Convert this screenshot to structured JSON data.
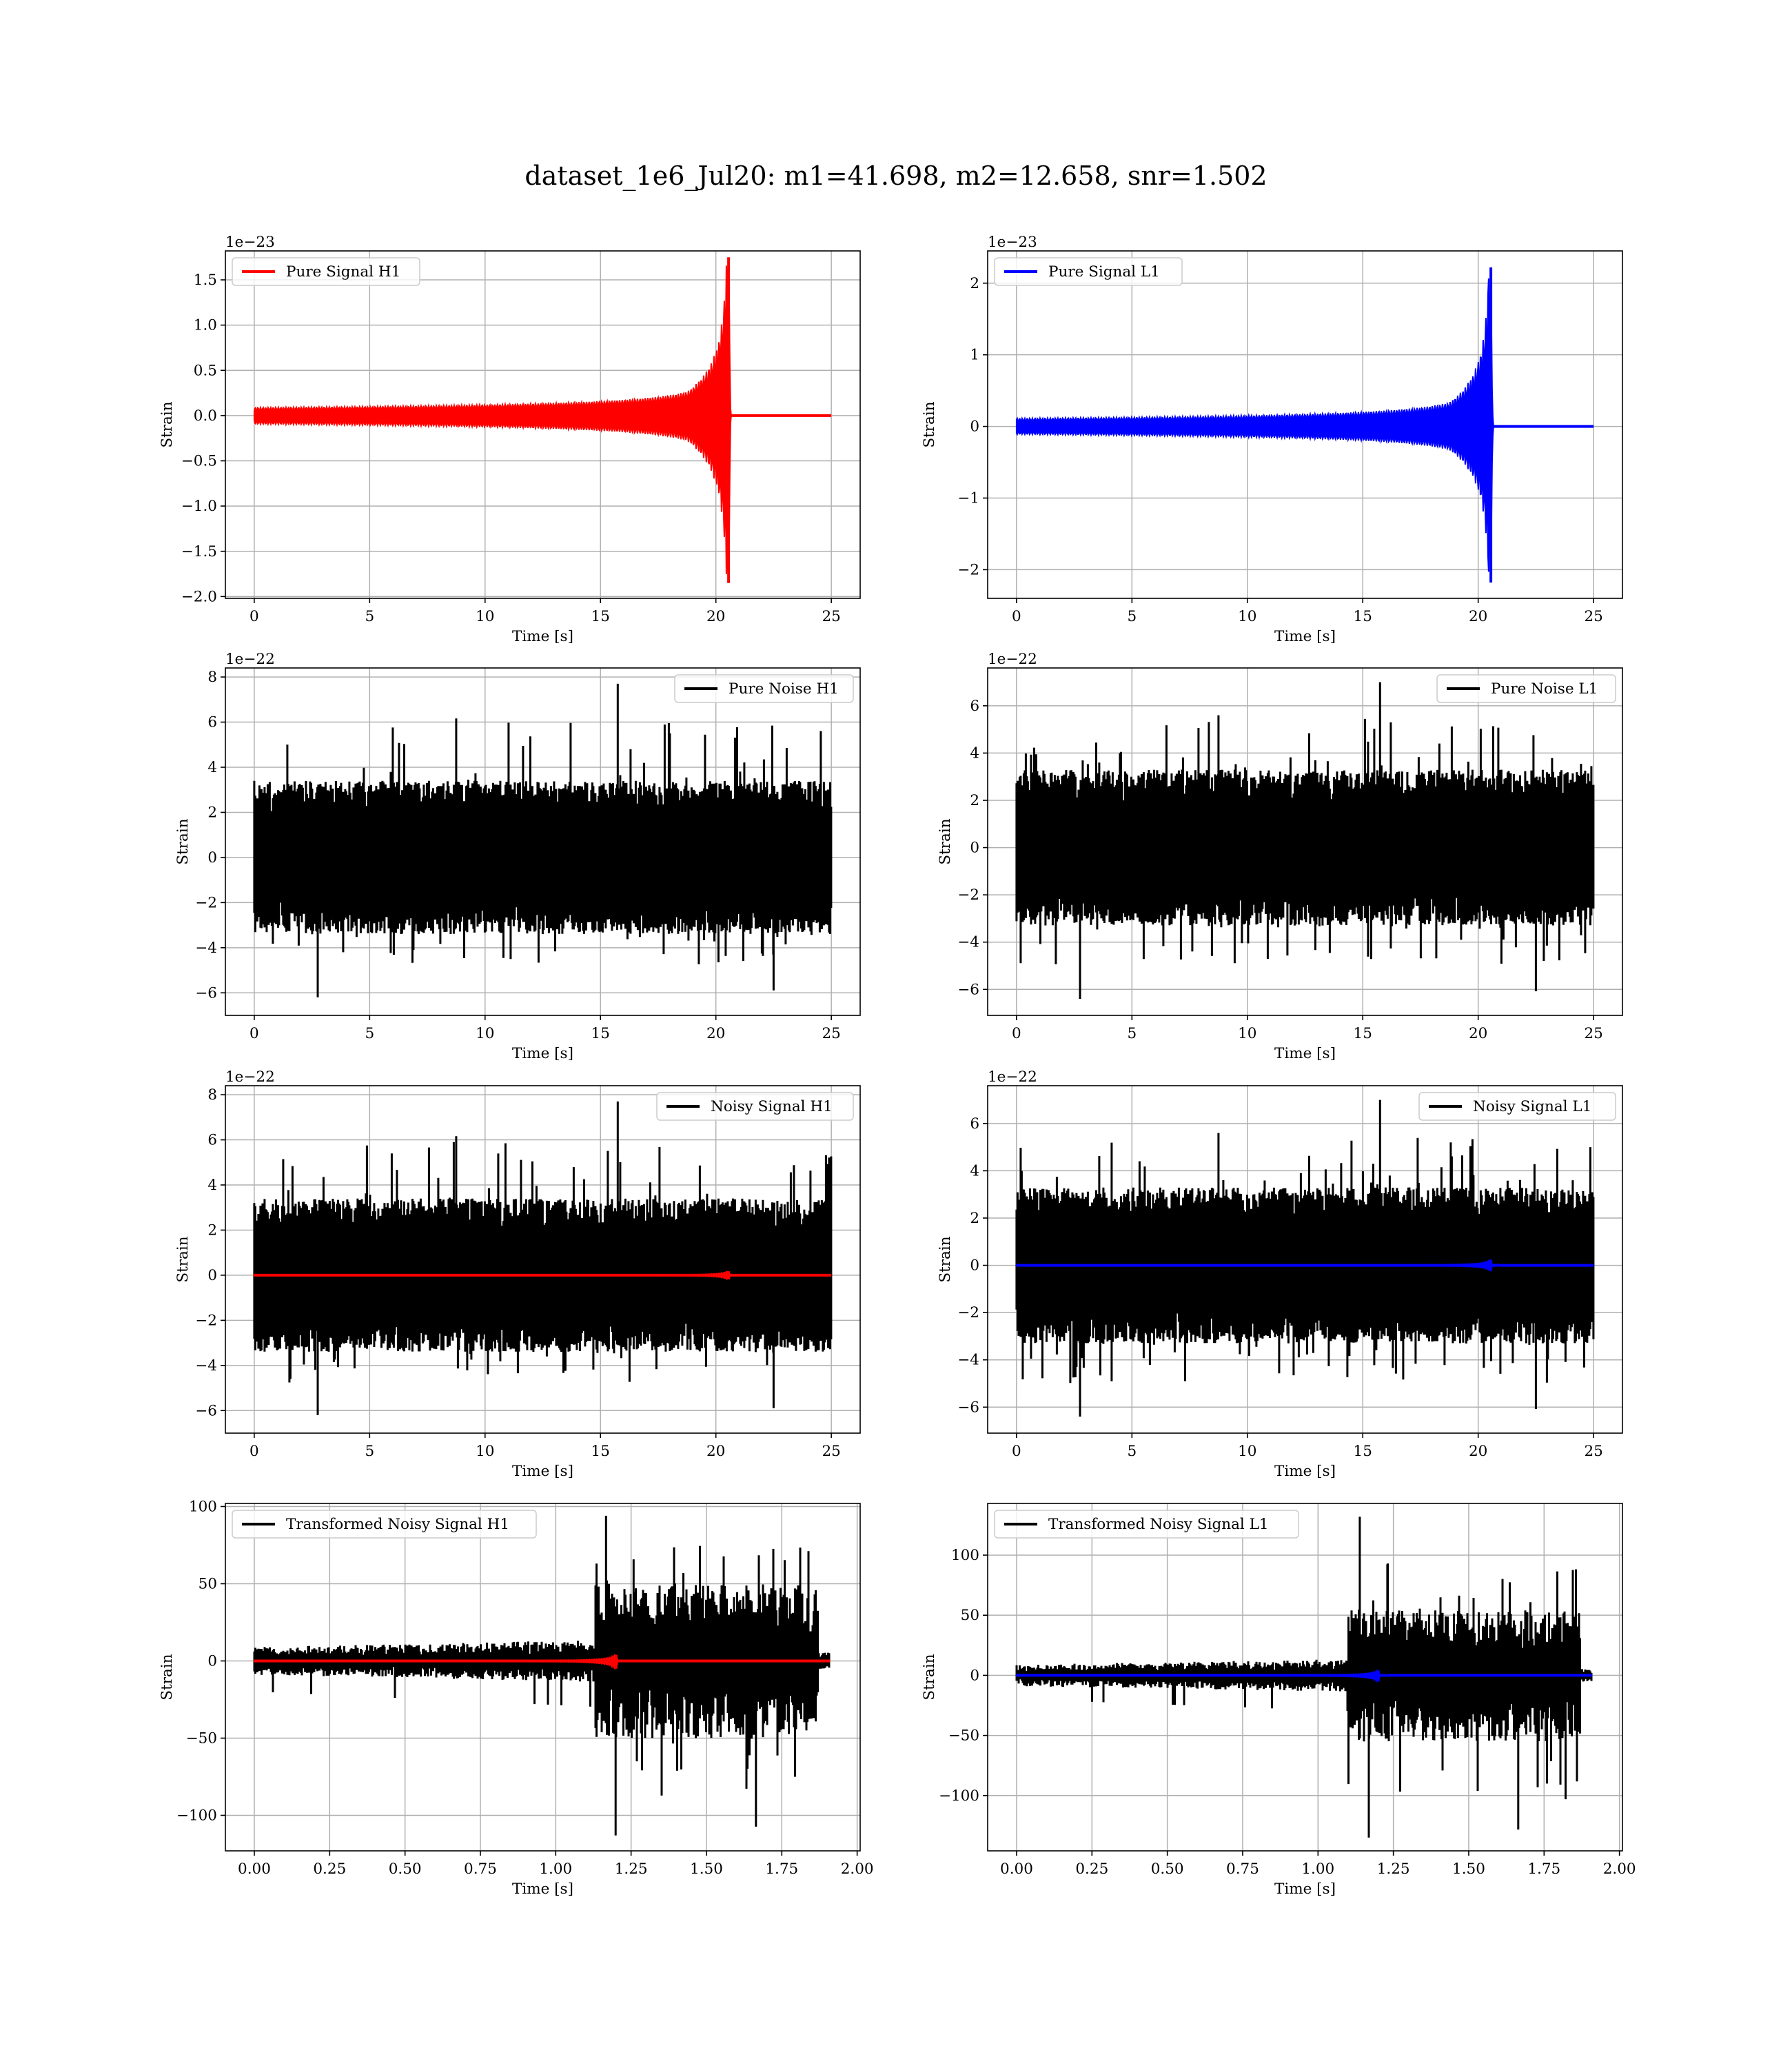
{
  "figure": {
    "title": "dataset_1e6_Jul20: m1=41.698, m2=12.658, snr=1.502"
  },
  "colors": {
    "red": "#ff0000",
    "blue": "#0000ff",
    "black": "#000000"
  },
  "chart_data": [
    {
      "id": "pure-signal-h1",
      "type": "line",
      "xlabel": "Time [s]",
      "ylabel": "Strain",
      "xlim": [
        -1.25,
        26.25
      ],
      "ylim": [
        -2.02,
        1.82
      ],
      "offset_text": "1e−23",
      "xticks": [
        0,
        5,
        10,
        15,
        20,
        25
      ],
      "xticklabels": [
        "0",
        "5",
        "10",
        "15",
        "20",
        "25"
      ],
      "yticks": [
        1.5,
        1.0,
        0.5,
        0.0,
        -0.5,
        -1.0,
        -1.5,
        -2.0
      ],
      "yticklabels": [
        "1.5",
        "1.0",
        "0.5",
        "0.0",
        "−0.5",
        "−1.0",
        "−1.5",
        "−2.0"
      ],
      "legend": {
        "loc": "upper-left"
      },
      "series": [
        {
          "name": "Pure Signal H1",
          "color": "#ff0000",
          "kind": "chirp",
          "x_start": 0,
          "x_end": 25,
          "merger": 20.55,
          "peak_pos": 1.75,
          "peak_neg": -1.85
        }
      ]
    },
    {
      "id": "pure-signal-l1",
      "type": "line",
      "xlabel": "Time [s]",
      "ylabel": "Strain",
      "xlim": [
        -1.25,
        26.25
      ],
      "ylim": [
        -2.4,
        2.45
      ],
      "offset_text": "1e−23",
      "xticks": [
        0,
        5,
        10,
        15,
        20,
        25
      ],
      "xticklabels": [
        "0",
        "5",
        "10",
        "15",
        "20",
        "25"
      ],
      "yticks": [
        2,
        1,
        0,
        -1,
        -2
      ],
      "yticklabels": [
        "2",
        "1",
        "0",
        "−1",
        "−2"
      ],
      "legend": {
        "loc": "upper-left"
      },
      "series": [
        {
          "name": "Pure Signal L1",
          "color": "#0000ff",
          "kind": "chirp",
          "x_start": 0,
          "x_end": 25,
          "merger": 20.55,
          "peak_pos": 2.22,
          "peak_neg": -2.18
        }
      ]
    },
    {
      "id": "pure-noise-h1",
      "type": "line",
      "xlabel": "Time [s]",
      "ylabel": "Strain",
      "xlim": [
        -1.25,
        26.25
      ],
      "ylim": [
        -7.0,
        8.4
      ],
      "offset_text": "1e−22",
      "xticks": [
        0,
        5,
        10,
        15,
        20,
        25
      ],
      "xticklabels": [
        "0",
        "5",
        "10",
        "15",
        "20",
        "25"
      ],
      "yticks": [
        8,
        6,
        4,
        2,
        0,
        -2,
        -4,
        -6
      ],
      "yticklabels": [
        "8",
        "6",
        "4",
        "2",
        "0",
        "−2",
        "−4",
        "−6"
      ],
      "legend": {
        "loc": "upper-right"
      },
      "series": [
        {
          "name": "Pure Noise H1",
          "color": "#000000",
          "kind": "noise",
          "x_start": 0,
          "x_end": 25,
          "base": 3.4,
          "max": 7.7,
          "min": -6.2
        }
      ]
    },
    {
      "id": "pure-noise-l1",
      "type": "line",
      "xlabel": "Time [s]",
      "ylabel": "Strain",
      "xlim": [
        -1.25,
        26.25
      ],
      "ylim": [
        -7.1,
        7.6
      ],
      "offset_text": "1e−22",
      "xticks": [
        0,
        5,
        10,
        15,
        20,
        25
      ],
      "xticklabels": [
        "0",
        "5",
        "10",
        "15",
        "20",
        "25"
      ],
      "yticks": [
        6,
        4,
        2,
        0,
        -2,
        -4,
        -6
      ],
      "yticklabels": [
        "6",
        "4",
        "2",
        "0",
        "−2",
        "−4",
        "−6"
      ],
      "legend": {
        "loc": "upper-right"
      },
      "series": [
        {
          "name": "Pure Noise L1",
          "color": "#000000",
          "kind": "noise",
          "x_start": 0,
          "x_end": 25,
          "base": 3.3,
          "max": 7.0,
          "min": -6.4
        }
      ]
    },
    {
      "id": "noisy-signal-h1",
      "type": "line",
      "xlabel": "Time [s]",
      "ylabel": "Strain",
      "xlim": [
        -1.25,
        26.25
      ],
      "ylim": [
        -7.0,
        8.4
      ],
      "offset_text": "1e−22",
      "xticks": [
        0,
        5,
        10,
        15,
        20,
        25
      ],
      "xticklabels": [
        "0",
        "5",
        "10",
        "15",
        "20",
        "25"
      ],
      "yticks": [
        8,
        6,
        4,
        2,
        0,
        -2,
        -4,
        -6
      ],
      "yticklabels": [
        "8",
        "6",
        "4",
        "2",
        "0",
        "−2",
        "−4",
        "−6"
      ],
      "legend": {
        "loc": "upper-right"
      },
      "series": [
        {
          "name": "Noisy Signal H1",
          "color": "#000000",
          "kind": "noise",
          "x_start": 0,
          "x_end": 25,
          "base": 3.4,
          "max": 7.7,
          "min": -6.2
        },
        {
          "color": "#ff0000",
          "kind": "chirp",
          "x_start": 0,
          "x_end": 25,
          "merger": 20.55,
          "peak_pos": 0.175,
          "peak_neg": -0.185
        }
      ]
    },
    {
      "id": "noisy-signal-l1",
      "type": "line",
      "xlabel": "Time [s]",
      "ylabel": "Strain",
      "xlim": [
        -1.25,
        26.25
      ],
      "ylim": [
        -7.1,
        7.6
      ],
      "offset_text": "1e−22",
      "xticks": [
        0,
        5,
        10,
        15,
        20,
        25
      ],
      "xticklabels": [
        "0",
        "5",
        "10",
        "15",
        "20",
        "25"
      ],
      "yticks": [
        6,
        4,
        2,
        0,
        -2,
        -4,
        -6
      ],
      "yticklabels": [
        "6",
        "4",
        "2",
        "0",
        "−2",
        "−4",
        "−6"
      ],
      "legend": {
        "loc": "upper-right"
      },
      "series": [
        {
          "name": "Noisy Signal L1",
          "color": "#000000",
          "kind": "noise",
          "x_start": 0,
          "x_end": 25,
          "base": 3.3,
          "max": 7.0,
          "min": -6.4
        },
        {
          "color": "#0000ff",
          "kind": "chirp",
          "x_start": 0,
          "x_end": 25,
          "merger": 20.55,
          "peak_pos": 0.222,
          "peak_neg": -0.218
        }
      ]
    },
    {
      "id": "transformed-noisy-signal-h1",
      "type": "line",
      "xlabel": "Time [s]",
      "ylabel": "Strain",
      "xlim": [
        -0.096,
        2.01
      ],
      "ylim": [
        -123,
        102
      ],
      "offset_text": "",
      "xticks": [
        0,
        0.25,
        0.5,
        0.75,
        1.0,
        1.25,
        1.5,
        1.75,
        2.0
      ],
      "xticklabels": [
        "0.00",
        "0.25",
        "0.50",
        "0.75",
        "1.00",
        "1.25",
        "1.50",
        "1.75",
        "2.00"
      ],
      "yticks": [
        100,
        50,
        0,
        -50,
        -100
      ],
      "yticklabels": [
        "100",
        "50",
        "0",
        "−50",
        "−100"
      ],
      "legend": {
        "loc": "upper-left"
      },
      "series": [
        {
          "name": "Transformed Noisy Signal H1",
          "color": "#000000",
          "kind": "whitened",
          "x_start": 0,
          "x_end": 1.91,
          "jump": 1.13,
          "cut": 1.87,
          "low": 9,
          "high": 50,
          "max": 94,
          "min": -113
        },
        {
          "color": "#ff0000",
          "kind": "chirp",
          "x_start": 0,
          "x_end": 1.91,
          "merger": 1.2,
          "peak_pos": 4,
          "peak_neg": -5
        }
      ]
    },
    {
      "id": "transformed-noisy-signal-l1",
      "type": "line",
      "xlabel": "Time [s]",
      "ylabel": "Strain",
      "xlim": [
        -0.096,
        2.01
      ],
      "ylim": [
        -146,
        143
      ],
      "offset_text": "",
      "xticks": [
        0,
        0.25,
        0.5,
        0.75,
        1.0,
        1.25,
        1.5,
        1.75,
        2.0
      ],
      "xticklabels": [
        "0.00",
        "0.25",
        "0.50",
        "0.75",
        "1.00",
        "1.25",
        "1.50",
        "1.75",
        "2.00"
      ],
      "yticks": [
        100,
        50,
        0,
        -50,
        -100
      ],
      "yticklabels": [
        "100",
        "50",
        "0",
        "−50",
        "−100"
      ],
      "legend": {
        "loc": "upper-left"
      },
      "series": [
        {
          "name": "Transformed Noisy Signal L1",
          "color": "#000000",
          "kind": "whitened",
          "x_start": 0,
          "x_end": 1.91,
          "jump": 1.1,
          "cut": 1.87,
          "low": 9,
          "high": 55,
          "max": 132,
          "min": -135
        },
        {
          "color": "#0000ff",
          "kind": "chirp",
          "x_start": 0,
          "x_end": 1.91,
          "merger": 1.2,
          "peak_pos": 4,
          "peak_neg": -5
        }
      ]
    }
  ]
}
